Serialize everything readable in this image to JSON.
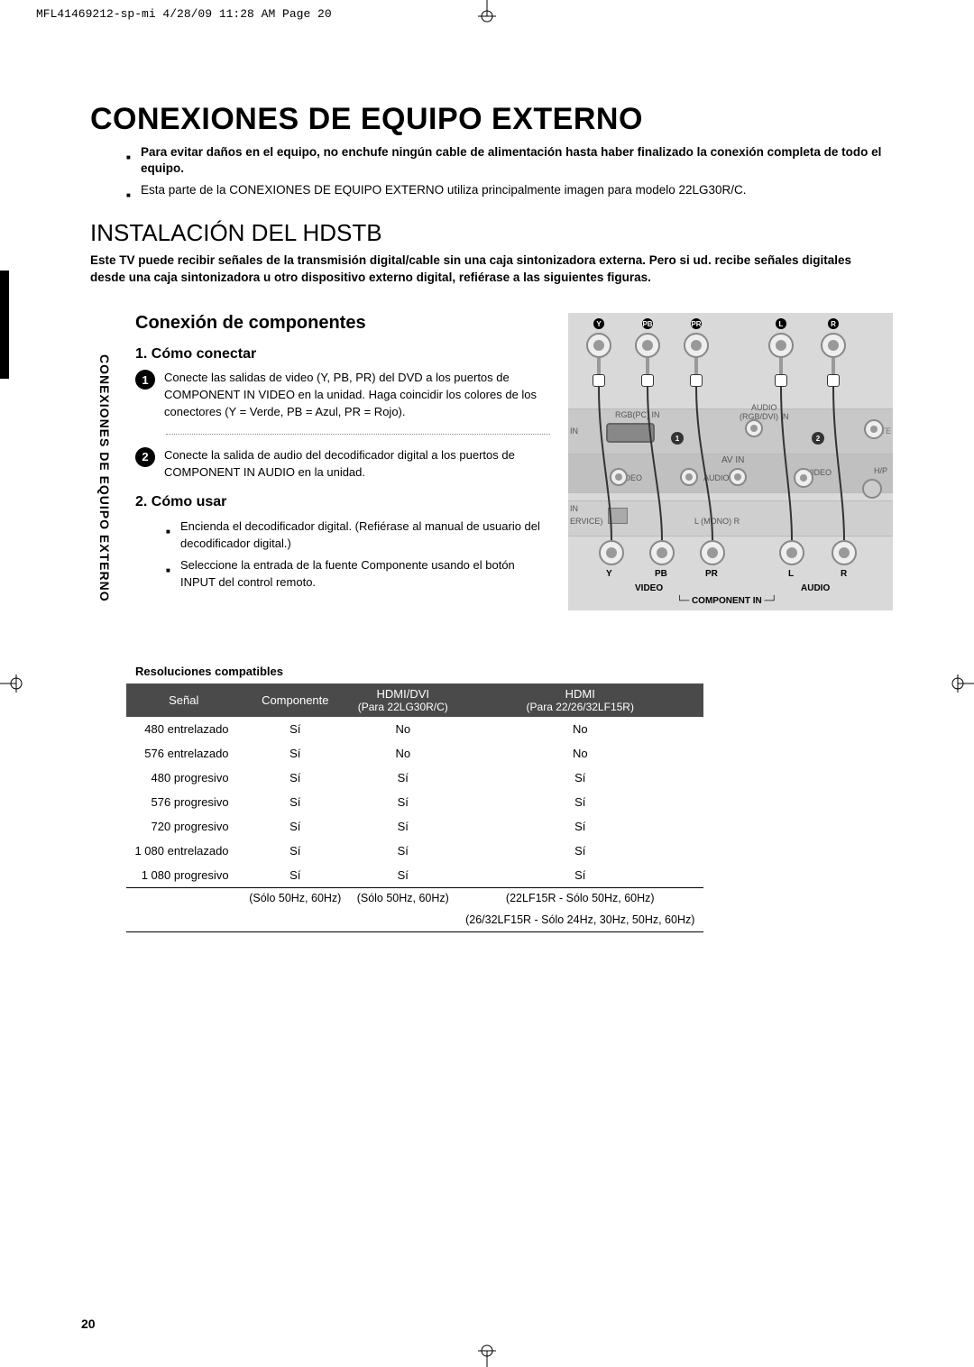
{
  "meta_header": "MFL41469212-sp-mi  4/28/09  11:28 AM  Page 20",
  "page_number": "20",
  "main_title": "CONEXIONES DE EQUIPO EXTERNO",
  "side_label": "CONEXIONES DE EQUIPO EXTERNO",
  "intro_bullets": [
    "Para evitar daños en el equipo, no enchufe ningún cable de alimentación hasta haber finalizado la conexión completa de todo el equipo.",
    "Esta parte de la CONEXIONES DE EQUIPO EXTERNO utiliza principalmente imagen para modelo 22LG30R/C."
  ],
  "section_title": "INSTALACIÓN DEL HDSTB",
  "intro_para": "Este TV puede recibir señales de la transmisión digital/cable sin una caja sintonizadora externa. Pero si ud. recibe señales digitales desde una caja sintonizadora u otro dispositivo externo digital, refiérase a las siguientes figuras.",
  "sub_h": "Conexión de componentes",
  "step1_h": "1. Cómo conectar",
  "step1_items": [
    "Conecte las salidas de video (Y, PB, PR) del DVD a los puertos de COMPONENT IN VIDEO en la unidad. Haga coincidir los colores de los conectores (Y = Verde, PB = Azul, PR = Rojo).",
    "Conecte la salida de audio del decodificador digital a los puertos de COMPONENT IN AUDIO en la unidad."
  ],
  "step2_h": "2. Cómo usar",
  "step2_items": [
    "Encienda el decodificador digital. (Refiérase al manual de usuario del decodificador digital.)",
    "Seleccione la entrada de la fuente Componente usando el botón INPUT del control remoto."
  ],
  "table_title": "Resoluciones compatibles",
  "table": {
    "columns": [
      "Señal",
      "Componente",
      "HDMI/DVI\n(Para 22LG30R/C)",
      "HDMI\n(Para 22/26/32LF15R)"
    ],
    "rows": [
      [
        "480 entrelazado",
        "Sí",
        "No",
        "No"
      ],
      [
        "576 entrelazado",
        "Sí",
        "No",
        "No"
      ],
      [
        "480 progresivo",
        "Sí",
        "Sí",
        "Sí"
      ],
      [
        "576 progresivo",
        "Sí",
        "Sí",
        "Sí"
      ],
      [
        "720 progresivo",
        "Sí",
        "Sí",
        "Sí"
      ],
      [
        "1 080 entrelazado",
        "Sí",
        "Sí",
        "Sí"
      ],
      [
        "1 080 progresivo",
        "Sí",
        "Sí",
        "Sí"
      ]
    ],
    "footer": [
      "",
      "(Sólo 50Hz, 60Hz)",
      "(Sólo 50Hz, 60Hz)",
      "(22LF15R - Sólo 50Hz, 60Hz)"
    ],
    "footer2": [
      "",
      "",
      "",
      "(26/32LF15R - Sólo 24Hz, 30Hz, 50Hz, 60Hz)"
    ]
  },
  "diagram": {
    "top_labels": [
      "Y",
      "PB",
      "PR",
      "L",
      "R"
    ],
    "rgb_label": "RGB(PC) IN",
    "audio_rgb_label": "AUDIO\n(RGB/DVI) IN",
    "avin_label": "AV IN",
    "video_small": "VIDEO",
    "audio_small": "AUDIO",
    "svideo": "S-VIDEO",
    "hp": "H/P",
    "in_label": "IN",
    "service_label": "ERVICE)",
    "mono": "L (MONO) R",
    "ante": "ANTE",
    "bottom_video": "VIDEO",
    "bottom_audio": "AUDIO",
    "component_in": "COMPONENT IN",
    "jacks_bottom": [
      "Y",
      "PB",
      "PR",
      "L",
      "R"
    ],
    "callouts": [
      "1",
      "2"
    ]
  }
}
